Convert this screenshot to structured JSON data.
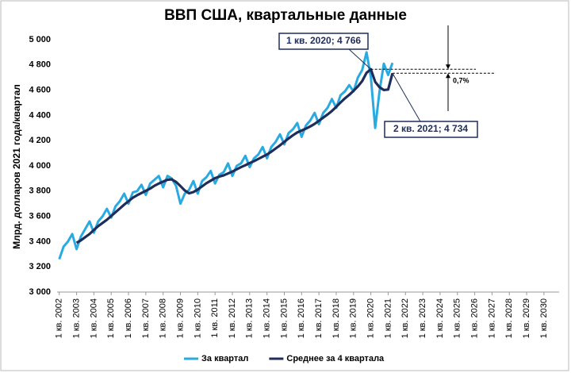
{
  "chart_data": {
    "type": "line",
    "title": "ВВП США, квартальные данные",
    "y_label": "Млрд. долларов 2021 года/квартал",
    "categories": [
      "1 кв. 2002",
      null,
      null,
      null,
      "1 кв. 2003",
      null,
      null,
      null,
      "1 кв. 2004",
      null,
      null,
      null,
      "1 кв. 2005",
      null,
      null,
      null,
      "1 кв. 2006",
      null,
      null,
      null,
      "1 кв. 2007",
      null,
      null,
      null,
      "1 кв. 2008",
      null,
      null,
      null,
      "1 кв. 2009",
      null,
      null,
      null,
      "1 кв. 2010",
      null,
      null,
      null,
      "1 кв. 2011",
      null,
      null,
      null,
      "1 кв. 2012",
      null,
      null,
      null,
      "1 кв. 2013",
      null,
      null,
      null,
      "1 кв. 2014",
      null,
      null,
      null,
      "1 кв. 2015",
      null,
      null,
      null,
      "1 кв. 2016",
      null,
      null,
      null,
      "1 кв. 2017",
      null,
      null,
      null,
      "1 кв. 2018",
      null,
      null,
      null,
      "1 кв. 2019",
      null,
      null,
      null,
      "1 кв. 2020",
      null,
      null,
      null,
      "1 кв. 2021",
      null,
      null,
      null,
      "1 кв. 2022",
      null,
      null,
      null,
      "1 кв. 2023",
      null,
      null,
      null,
      "1 кв. 2024",
      null,
      null,
      null,
      "1 кв. 2025",
      null,
      null,
      null,
      "1 кв. 2026",
      null,
      null,
      null,
      "1 кв. 2027",
      null,
      null,
      null,
      "1 кв. 2028",
      null,
      null,
      null,
      "1 кв. 2029",
      null,
      null,
      null,
      "1 кв. 2030",
      null,
      null,
      null
    ],
    "series": [
      {
        "name": "За квартал",
        "color": "#29abe2",
        "values": [
          3260,
          3360,
          3400,
          3460,
          3340,
          3440,
          3500,
          3560,
          3470,
          3560,
          3600,
          3660,
          3590,
          3680,
          3720,
          3780,
          3700,
          3790,
          3800,
          3850,
          3770,
          3860,
          3890,
          3920,
          3830,
          3920,
          3900,
          3840,
          3700,
          3780,
          3810,
          3880,
          3780,
          3880,
          3910,
          3960,
          3860,
          3930,
          3950,
          4020,
          3920,
          4000,
          4020,
          4080,
          3990,
          4060,
          4090,
          4150,
          4060,
          4150,
          4190,
          4250,
          4170,
          4260,
          4290,
          4340,
          4230,
          4320,
          4360,
          4420,
          4330,
          4420,
          4460,
          4530,
          4460,
          4560,
          4590,
          4640,
          4590,
          4700,
          4760,
          4900,
          4704,
          4300,
          4590,
          4810,
          4720,
          4816,
          null,
          null,
          null,
          null,
          null,
          null,
          null,
          null,
          null,
          null,
          null,
          null,
          null,
          null,
          null,
          null,
          null,
          null,
          null,
          null,
          null,
          null,
          null,
          null,
          null,
          null,
          null,
          null,
          null,
          null,
          null,
          null,
          null,
          null,
          null,
          null,
          null,
          null
        ]
      },
      {
        "name": "Среднее за 4 квартала",
        "color": "#1f2d5a",
        "values": [
          null,
          null,
          null,
          null,
          3390,
          3410,
          3435,
          3460,
          3492.5,
          3522.5,
          3547.5,
          3572.5,
          3602.5,
          3632.5,
          3662.5,
          3692.5,
          3720,
          3747.5,
          3767.5,
          3785,
          3802.5,
          3820,
          3842.5,
          3860,
          3875,
          3890,
          3892.5,
          3872.5,
          3840,
          3805,
          3782.5,
          3792.5,
          3812.5,
          3837.5,
          3862.5,
          3882.5,
          3902.5,
          3915,
          3925,
          3940,
          3955,
          3972.5,
          3990,
          4005,
          4022.5,
          4037.5,
          4055,
          4072.5,
          4090,
          4112.5,
          4137.5,
          4162.5,
          4190,
          4217.5,
          4242.5,
          4265,
          4280,
          4295,
          4312.5,
          4332.5,
          4357.5,
          4382.5,
          4407.5,
          4435,
          4467.5,
          4502.5,
          4535,
          4562.5,
          4595,
          4630,
          4672.5,
          4737.5,
          4766,
          4666,
          4623.5,
          4601,
          4605,
          4734,
          null,
          null,
          null,
          null,
          null,
          null,
          null,
          null,
          null,
          null,
          null,
          null,
          null,
          null,
          null,
          null,
          null,
          null,
          null,
          null,
          null,
          null,
          null,
          null,
          null,
          null,
          null,
          null,
          null,
          null,
          null,
          null,
          null,
          null,
          null,
          null,
          null,
          null
        ]
      }
    ],
    "ylim": [
      3000,
      5000
    ],
    "yticks": [
      {
        "value": 3000,
        "label": "3 000"
      },
      {
        "value": 3200,
        "label": "3 200"
      },
      {
        "value": 3400,
        "label": "3 400"
      },
      {
        "value": 3600,
        "label": "3 600"
      },
      {
        "value": 3800,
        "label": "3 800"
      },
      {
        "value": 4000,
        "label": "4 000"
      },
      {
        "value": 4200,
        "label": "4 200"
      },
      {
        "value": 4400,
        "label": "4 400"
      },
      {
        "value": 4600,
        "label": "4 600"
      },
      {
        "value": 4800,
        "label": "4 800"
      },
      {
        "value": 5000,
        "label": "5 000"
      }
    ],
    "grid": false,
    "legend": "bottom",
    "annotations": [
      "1 кв. 2020; 4 766",
      "2 кв. 2021; 4 734",
      "0,7%"
    ]
  }
}
